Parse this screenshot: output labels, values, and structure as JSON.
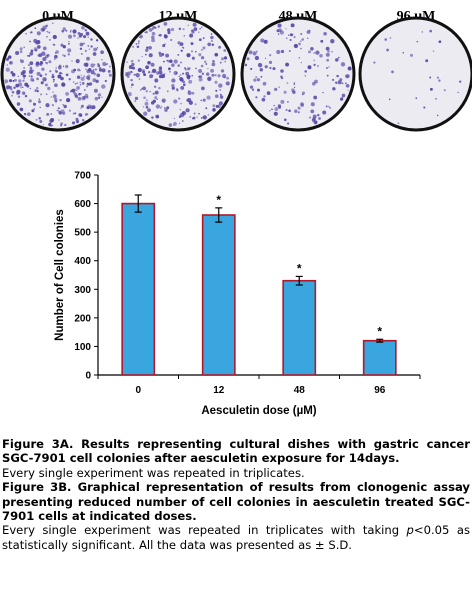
{
  "dishes": [
    {
      "label": "0 µM",
      "density": 1.0
    },
    {
      "label": "12 µM",
      "density": 0.8
    },
    {
      "label": "48 µM",
      "density": 0.45
    },
    {
      "label": "96 µM",
      "density": 0.08
    }
  ],
  "colors": {
    "bar_fill": "#3aa6e0",
    "bar_stroke": "#b3182a",
    "colony": "#5a4aa8",
    "dish_bg": "#ecebf2",
    "dish_rim": "#111111"
  },
  "chart_data": {
    "type": "bar",
    "categories": [
      "0",
      "12",
      "48",
      "96"
    ],
    "values": [
      600,
      560,
      330,
      120
    ],
    "errors": [
      30,
      25,
      15,
      5
    ],
    "significance": [
      "",
      "*",
      "*",
      "*"
    ],
    "xlabel": "Aesculetin dose (µM)",
    "ylabel": "Number of Cell colonies",
    "ylim": [
      0,
      700
    ],
    "yticks": [
      0,
      100,
      200,
      300,
      400,
      500,
      600,
      700
    ],
    "grid": false,
    "legend": "none"
  },
  "caption": {
    "fig3a_title": "Figure 3A. Results representing cultural dishes with gastric cancer SGC-7901 cell colonies after aesculetin exposure for 14days.",
    "fig3a_note": "Every single experiment was repeated in triplicates.",
    "fig3b_title": "Figure 3B. Graphical representation of results from clonogenic assay presenting reduced number of cell colonies in aesculetin treated SGC-7901 cells at indicated doses.",
    "fig3b_note_a": "Every single experiment was repeated in triplicates with taking ",
    "fig3b_note_p": "p",
    "fig3b_note_b": "<0.05 as statistically significant. All the data was presented as ± S.D."
  }
}
